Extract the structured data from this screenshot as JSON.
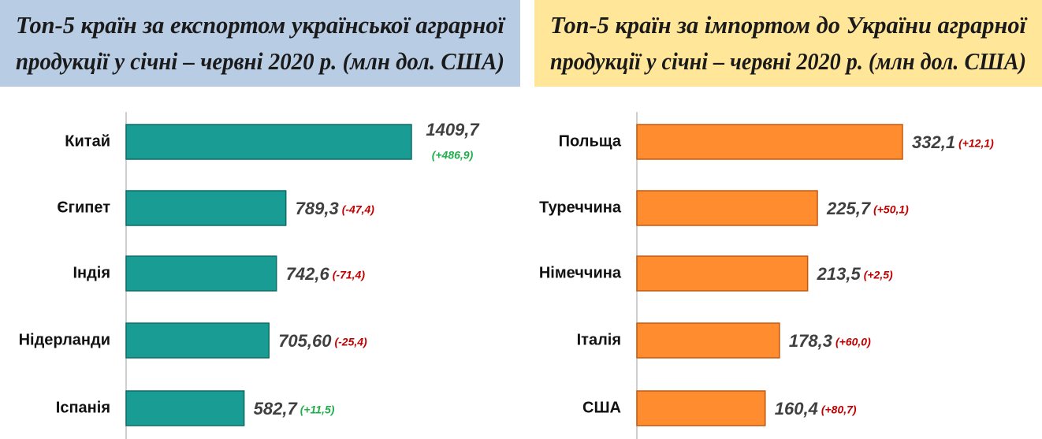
{
  "chart_data": [
    {
      "type": "bar",
      "orientation": "horizontal",
      "title": [
        "Топ-5 країн за експортом української аграрної",
        "продукції у січні – червні 2020 р. (млн дол. США)"
      ],
      "categories": [
        "Китай",
        "Єгипет",
        "Індія",
        "Нідерланди",
        "Іспанія"
      ],
      "values": [
        1409.7,
        789.3,
        742.6,
        705.6,
        582.7
      ],
      "value_labels": [
        "1409,7",
        "789,3",
        "742,6",
        "705,60",
        "582,7"
      ],
      "changes": [
        "(+486,9)",
        "(-47,4)",
        "(-71,4)",
        "(-25,4)",
        "(+11,5)"
      ],
      "change_colors": [
        "#1fae4a",
        "#c00000",
        "#c00000",
        "#c00000",
        "#1fae4a"
      ],
      "color": "#189c94",
      "edge_color": "#0e6c66",
      "title_background": "#b8cce4"
    },
    {
      "type": "bar",
      "orientation": "horizontal",
      "title": [
        "Топ-5 країн за імпортом до України аграрної",
        "продукції у січні – червні 2020 р. (млн дол. США)"
      ],
      "categories": [
        "Польща",
        "Туреччина",
        "Німеччина",
        "Італія",
        "США"
      ],
      "values": [
        332.1,
        225.7,
        213.5,
        178.3,
        160.4
      ],
      "value_labels": [
        "332,1",
        "225,7",
        "213,5",
        "178,3",
        "160,4"
      ],
      "changes": [
        "(+12,1)",
        "(+50,1)",
        "(+2,5)",
        "(+60,0)",
        "(+80,7)"
      ],
      "change_colors": [
        "#c00000",
        "#c00000",
        "#c00000",
        "#c00000",
        "#c00000"
      ],
      "color": "#ff8c2e",
      "edge_color": "#c05a10",
      "title_background": "#ffe699"
    }
  ]
}
